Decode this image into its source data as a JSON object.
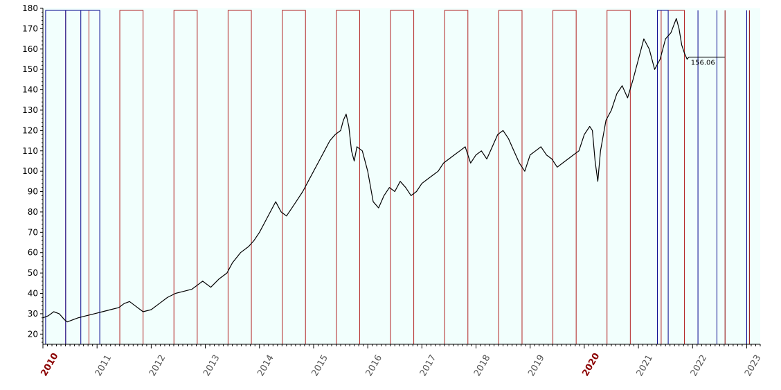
{
  "chart_data": {
    "type": "line",
    "title": "",
    "xlabel": "",
    "ylabel": "",
    "xlim": [
      2010.0,
      2023.25
    ],
    "ylim": [
      15,
      180
    ],
    "y_ticks": [
      20,
      30,
      40,
      50,
      60,
      70,
      80,
      90,
      100,
      110,
      120,
      130,
      140,
      150,
      160,
      170,
      180
    ],
    "x_ticks": [
      {
        "label": "2010",
        "value": 2010,
        "emphasis": true
      },
      {
        "label": "2011",
        "value": 2011,
        "emphasis": false
      },
      {
        "label": "2012",
        "value": 2012,
        "emphasis": false
      },
      {
        "label": "2013",
        "value": 2013,
        "emphasis": false
      },
      {
        "label": "2014",
        "value": 2014,
        "emphasis": false
      },
      {
        "label": "2015",
        "value": 2015,
        "emphasis": false
      },
      {
        "label": "2016",
        "value": 2016,
        "emphasis": false
      },
      {
        "label": "2017",
        "value": 2017,
        "emphasis": false
      },
      {
        "label": "2018",
        "value": 2018,
        "emphasis": false
      },
      {
        "label": "2019",
        "value": 2019,
        "emphasis": false
      },
      {
        "label": "2020",
        "value": 2020,
        "emphasis": true
      },
      {
        "label": "2021",
        "value": 2021,
        "emphasis": false
      },
      {
        "label": "2022",
        "value": 2022,
        "emphasis": false
      },
      {
        "label": "2023",
        "value": 2023,
        "emphasis": false
      }
    ],
    "grid": false,
    "background_color": "#f2fffd",
    "series": [
      {
        "color": "#000000",
        "x": [
          2010.0,
          2010.1,
          2010.2,
          2010.3,
          2010.4,
          2010.45,
          2010.55,
          2010.65,
          2010.8,
          2010.95,
          2011.1,
          2011.25,
          2011.4,
          2011.5,
          2011.6,
          2011.7,
          2011.85,
          2012.0,
          2012.15,
          2012.3,
          2012.45,
          2012.6,
          2012.75,
          2012.85,
          2012.95,
          2013.1,
          2013.25,
          2013.4,
          2013.5,
          2013.65,
          2013.8,
          2013.9,
          2014.0,
          2014.1,
          2014.2,
          2014.3,
          2014.4,
          2014.5,
          2014.6,
          2014.7,
          2014.8,
          2014.9,
          2015.0,
          2015.1,
          2015.2,
          2015.3,
          2015.4,
          2015.5,
          2015.55,
          2015.6,
          2015.65,
          2015.7,
          2015.75,
          2015.8,
          2015.9,
          2016.0,
          2016.1,
          2016.2,
          2016.3,
          2016.4,
          2016.5,
          2016.6,
          2016.7,
          2016.8,
          2016.9,
          2017.0,
          2017.1,
          2017.2,
          2017.3,
          2017.4,
          2017.5,
          2017.6,
          2017.7,
          2017.8,
          2017.9,
          2018.0,
          2018.1,
          2018.2,
          2018.3,
          2018.4,
          2018.5,
          2018.6,
          2018.7,
          2018.8,
          2018.9,
          2019.0,
          2019.1,
          2019.2,
          2019.3,
          2019.4,
          2019.5,
          2019.6,
          2019.7,
          2019.8,
          2019.9,
          2020.0,
          2020.1,
          2020.15,
          2020.2,
          2020.25,
          2020.3,
          2020.4,
          2020.5,
          2020.6,
          2020.7,
          2020.8,
          2020.9,
          2021.0,
          2021.1,
          2021.2,
          2021.3,
          2021.4,
          2021.5,
          2021.6,
          2021.7,
          2021.75,
          2021.8,
          2021.85,
          2021.9,
          2021.93
        ],
        "values": [
          28,
          29,
          31,
          30,
          27,
          26,
          27,
          28,
          29,
          30,
          31,
          32,
          33,
          35,
          36,
          34,
          31,
          32,
          35,
          38,
          40,
          41,
          42,
          44,
          46,
          43,
          47,
          50,
          55,
          60,
          63,
          66,
          70,
          75,
          80,
          85,
          80,
          78,
          82,
          86,
          90,
          95,
          100,
          105,
          110,
          115,
          118,
          120,
          125,
          128,
          122,
          110,
          105,
          112,
          110,
          100,
          85,
          82,
          88,
          92,
          90,
          95,
          92,
          88,
          90,
          94,
          96,
          98,
          100,
          104,
          106,
          108,
          110,
          112,
          104,
          108,
          110,
          106,
          112,
          118,
          120,
          116,
          110,
          104,
          100,
          108,
          110,
          112,
          108,
          106,
          102,
          104,
          106,
          108,
          110,
          118,
          122,
          120,
          105,
          95,
          110,
          125,
          130,
          138,
          142,
          136,
          145,
          155,
          165,
          160,
          150,
          155,
          165,
          168,
          175,
          170,
          162,
          158,
          155,
          156.06
        ]
      }
    ],
    "annotations": [
      {
        "text": "156.06",
        "x": 2021.93,
        "y": 156.06
      }
    ],
    "red_intervals": [
      [
        2010.42,
        2010.85
      ],
      [
        2011.42,
        2011.85
      ],
      [
        2012.42,
        2012.85
      ],
      [
        2013.42,
        2013.85
      ],
      [
        2014.42,
        2014.85
      ],
      [
        2015.42,
        2015.85
      ],
      [
        2016.42,
        2016.85
      ],
      [
        2017.42,
        2017.85
      ],
      [
        2018.42,
        2018.85
      ],
      [
        2019.42,
        2019.85
      ],
      [
        2020.42,
        2020.85
      ],
      [
        2021.42,
        2021.85
      ]
    ],
    "blue_intervals": [
      [
        2010.05,
        2011.05
      ],
      [
        2021.35,
        2021.55
      ]
    ],
    "vertical_lines": [
      {
        "x": 2010.42,
        "color": "#00008b"
      },
      {
        "x": 2010.7,
        "color": "#00008b"
      },
      {
        "x": 2022.1,
        "color": "#00008b"
      },
      {
        "x": 2022.45,
        "color": "#00008b"
      },
      {
        "x": 2022.6,
        "color": "#8b0000"
      },
      {
        "x": 2023.0,
        "color": "#00008b"
      },
      {
        "x": 2023.05,
        "color": "#8b0000"
      }
    ],
    "line_colors": {
      "red": "#b22222",
      "blue": "#00008b"
    }
  }
}
